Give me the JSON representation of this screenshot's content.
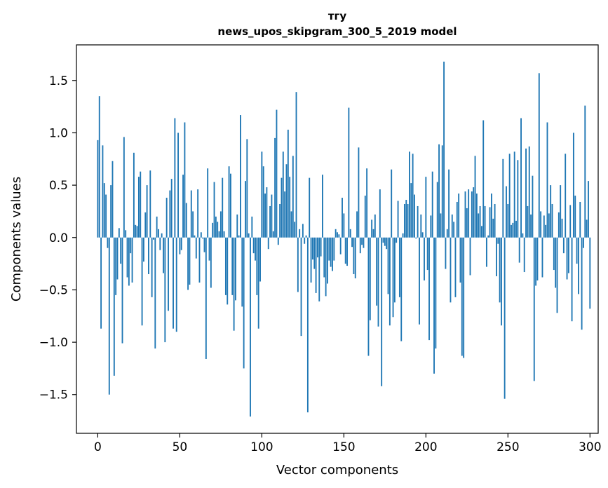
{
  "chart_data": {
    "type": "bar",
    "title_lines": [
      "тгу",
      "news_upos_skipgram_300_5_2019 model"
    ],
    "xlabel": "Vector components",
    "ylabel": "Components values",
    "xlim": [
      -13,
      305
    ],
    "ylim": [
      -1.87,
      1.84
    ],
    "xticks": [
      0,
      50,
      100,
      150,
      200,
      250,
      300
    ],
    "xtick_labels": [
      "0",
      "50",
      "100",
      "150",
      "200",
      "250",
      "300"
    ],
    "yticks": [
      -1.5,
      -1.0,
      -0.5,
      0.0,
      0.5,
      1.0,
      1.5
    ],
    "ytick_labels": [
      "−1.5",
      "−1.0",
      "−0.5",
      "0.0",
      "0.5",
      "1.0",
      "1.5"
    ],
    "bar_color": "#1f77b4",
    "grid": false,
    "x": "0..299",
    "values": [
      0.93,
      1.35,
      -0.87,
      0.88,
      0.52,
      0.41,
      -0.1,
      -1.5,
      0.5,
      0.73,
      -1.32,
      -0.55,
      -0.4,
      0.09,
      -0.25,
      -1.01,
      0.96,
      0.07,
      -0.38,
      -0.46,
      -0.15,
      -0.43,
      0.81,
      0.12,
      0.11,
      0.58,
      0.63,
      -0.84,
      -0.23,
      0.24,
      0.5,
      -0.35,
      0.64,
      -0.57,
      -0.02,
      -1.06,
      0.2,
      0.08,
      -0.12,
      0.04,
      -0.34,
      -1.0,
      0.38,
      -0.7,
      0.45,
      0.56,
      -0.87,
      1.14,
      -0.9,
      1.0,
      -0.16,
      -0.12,
      0.6,
      1.1,
      0.33,
      -0.5,
      -0.45,
      0.45,
      0.25,
      0.02,
      -0.2,
      0.46,
      -0.43,
      0.05,
      -0.01,
      -0.14,
      -1.16,
      0.66,
      -0.22,
      -0.48,
      0.14,
      0.53,
      0.2,
      0.15,
      0.06,
      0.25,
      0.57,
      0.06,
      -0.55,
      -0.64,
      0.68,
      0.61,
      -0.55,
      -0.89,
      -0.6,
      0.22,
      0.02,
      1.17,
      -0.66,
      -1.25,
      0.54,
      0.94,
      0.04,
      -1.71,
      0.2,
      -0.15,
      -0.22,
      -0.55,
      -0.87,
      -0.42,
      0.82,
      0.68,
      0.42,
      0.48,
      -0.11,
      0.3,
      0.41,
      0.06,
      0.95,
      1.22,
      -0.07,
      0.32,
      0.57,
      0.82,
      0.44,
      0.7,
      1.03,
      0.58,
      0.25,
      0.78,
      0.15,
      1.39,
      -0.52,
      0.08,
      -0.94,
      0.13,
      -0.06,
      0.02,
      -1.67,
      0.57,
      -0.43,
      -0.21,
      -0.3,
      -0.53,
      -0.19,
      -0.61,
      -0.18,
      0.6,
      -0.38,
      -0.56,
      -0.44,
      -0.22,
      -0.28,
      -0.32,
      -0.22,
      0.08,
      0.05,
      0.03,
      -0.16,
      0.38,
      0.23,
      -0.25,
      -0.27,
      1.24,
      0.08,
      -0.09,
      -0.35,
      -0.39,
      0.25,
      0.86,
      -0.15,
      -0.07,
      -0.1,
      0.4,
      0.66,
      -1.13,
      -0.79,
      0.17,
      0.08,
      0.22,
      -0.65,
      -0.85,
      0.46,
      -1.42,
      -0.05,
      -0.08,
      -0.11,
      -0.54,
      -0.84,
      0.65,
      -0.76,
      -0.62,
      -0.05,
      0.35,
      -0.57,
      -0.99,
      0.04,
      0.32,
      0.36,
      0.32,
      0.82,
      0.52,
      0.8,
      0.41,
      -0.01,
      0.3,
      -0.83,
      0.22,
      0.05,
      -0.41,
      0.58,
      -0.31,
      -0.98,
      0.21,
      0.63,
      -1.3,
      -1.06,
      0.53,
      0.89,
      0.23,
      0.88,
      1.68,
      -0.3,
      0.08,
      0.65,
      -0.62,
      0.22,
      0.15,
      -0.57,
      0.34,
      0.42,
      -0.43,
      -1.13,
      -1.15,
      0.44,
      0.28,
      0.46,
      -0.36,
      0.44,
      0.48,
      0.78,
      0.42,
      0.23,
      0.3,
      0.11,
      1.12,
      0.3,
      -0.28,
      0.02,
      0.29,
      0.42,
      0.18,
      0.32,
      -0.37,
      -0.06,
      -0.62,
      -0.84,
      0.75,
      -1.54,
      0.49,
      0.32,
      0.8,
      0.12,
      0.14,
      0.82,
      0.16,
      0.74,
      -0.24,
      1.14,
      0.04,
      -0.33,
      0.85,
      0.3,
      0.87,
      0.22,
      0.59,
      -1.37,
      -0.46,
      -0.41,
      1.57,
      0.25,
      -0.38,
      0.21,
      0.12,
      1.1,
      0.23,
      0.5,
      0.32,
      -0.31,
      -0.48,
      -0.72,
      0.24,
      0.5,
      0.18,
      -0.15,
      0.8,
      -0.4,
      -0.34,
      0.31,
      -0.8,
      1.0,
      0.4,
      -0.25,
      -0.54,
      0.34,
      -0.88,
      -0.1,
      1.26,
      0.17,
      0.54,
      -0.68
    ]
  }
}
